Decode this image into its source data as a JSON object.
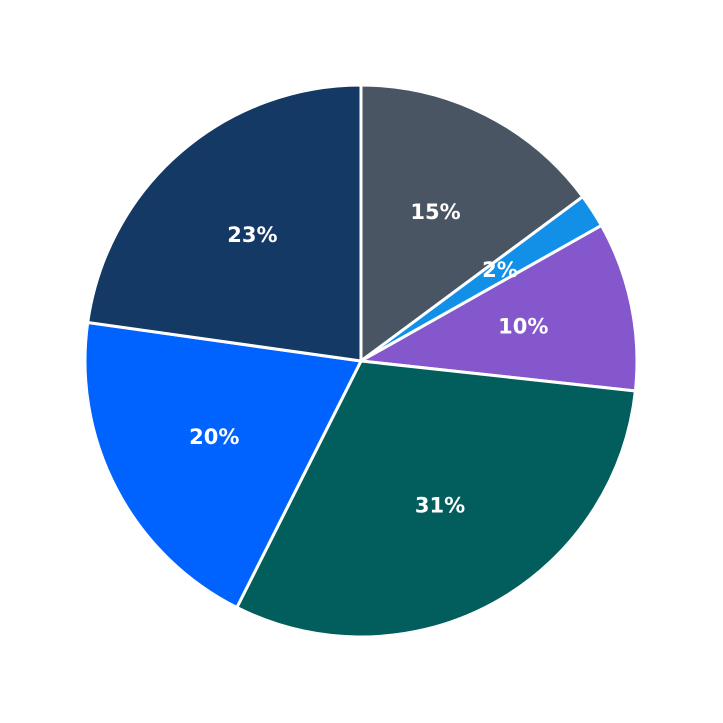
{
  "chart_data": {
    "type": "pie",
    "values": [
      15,
      2,
      10,
      31,
      20,
      23
    ],
    "value_labels": [
      "15%",
      "2%",
      "10%",
      "31%",
      "20%",
      "23%"
    ],
    "colors": [
      "#4a5563",
      "#1290e8",
      "#8457cc",
      "#025e5c",
      "#0062ff",
      "#143964"
    ]
  }
}
